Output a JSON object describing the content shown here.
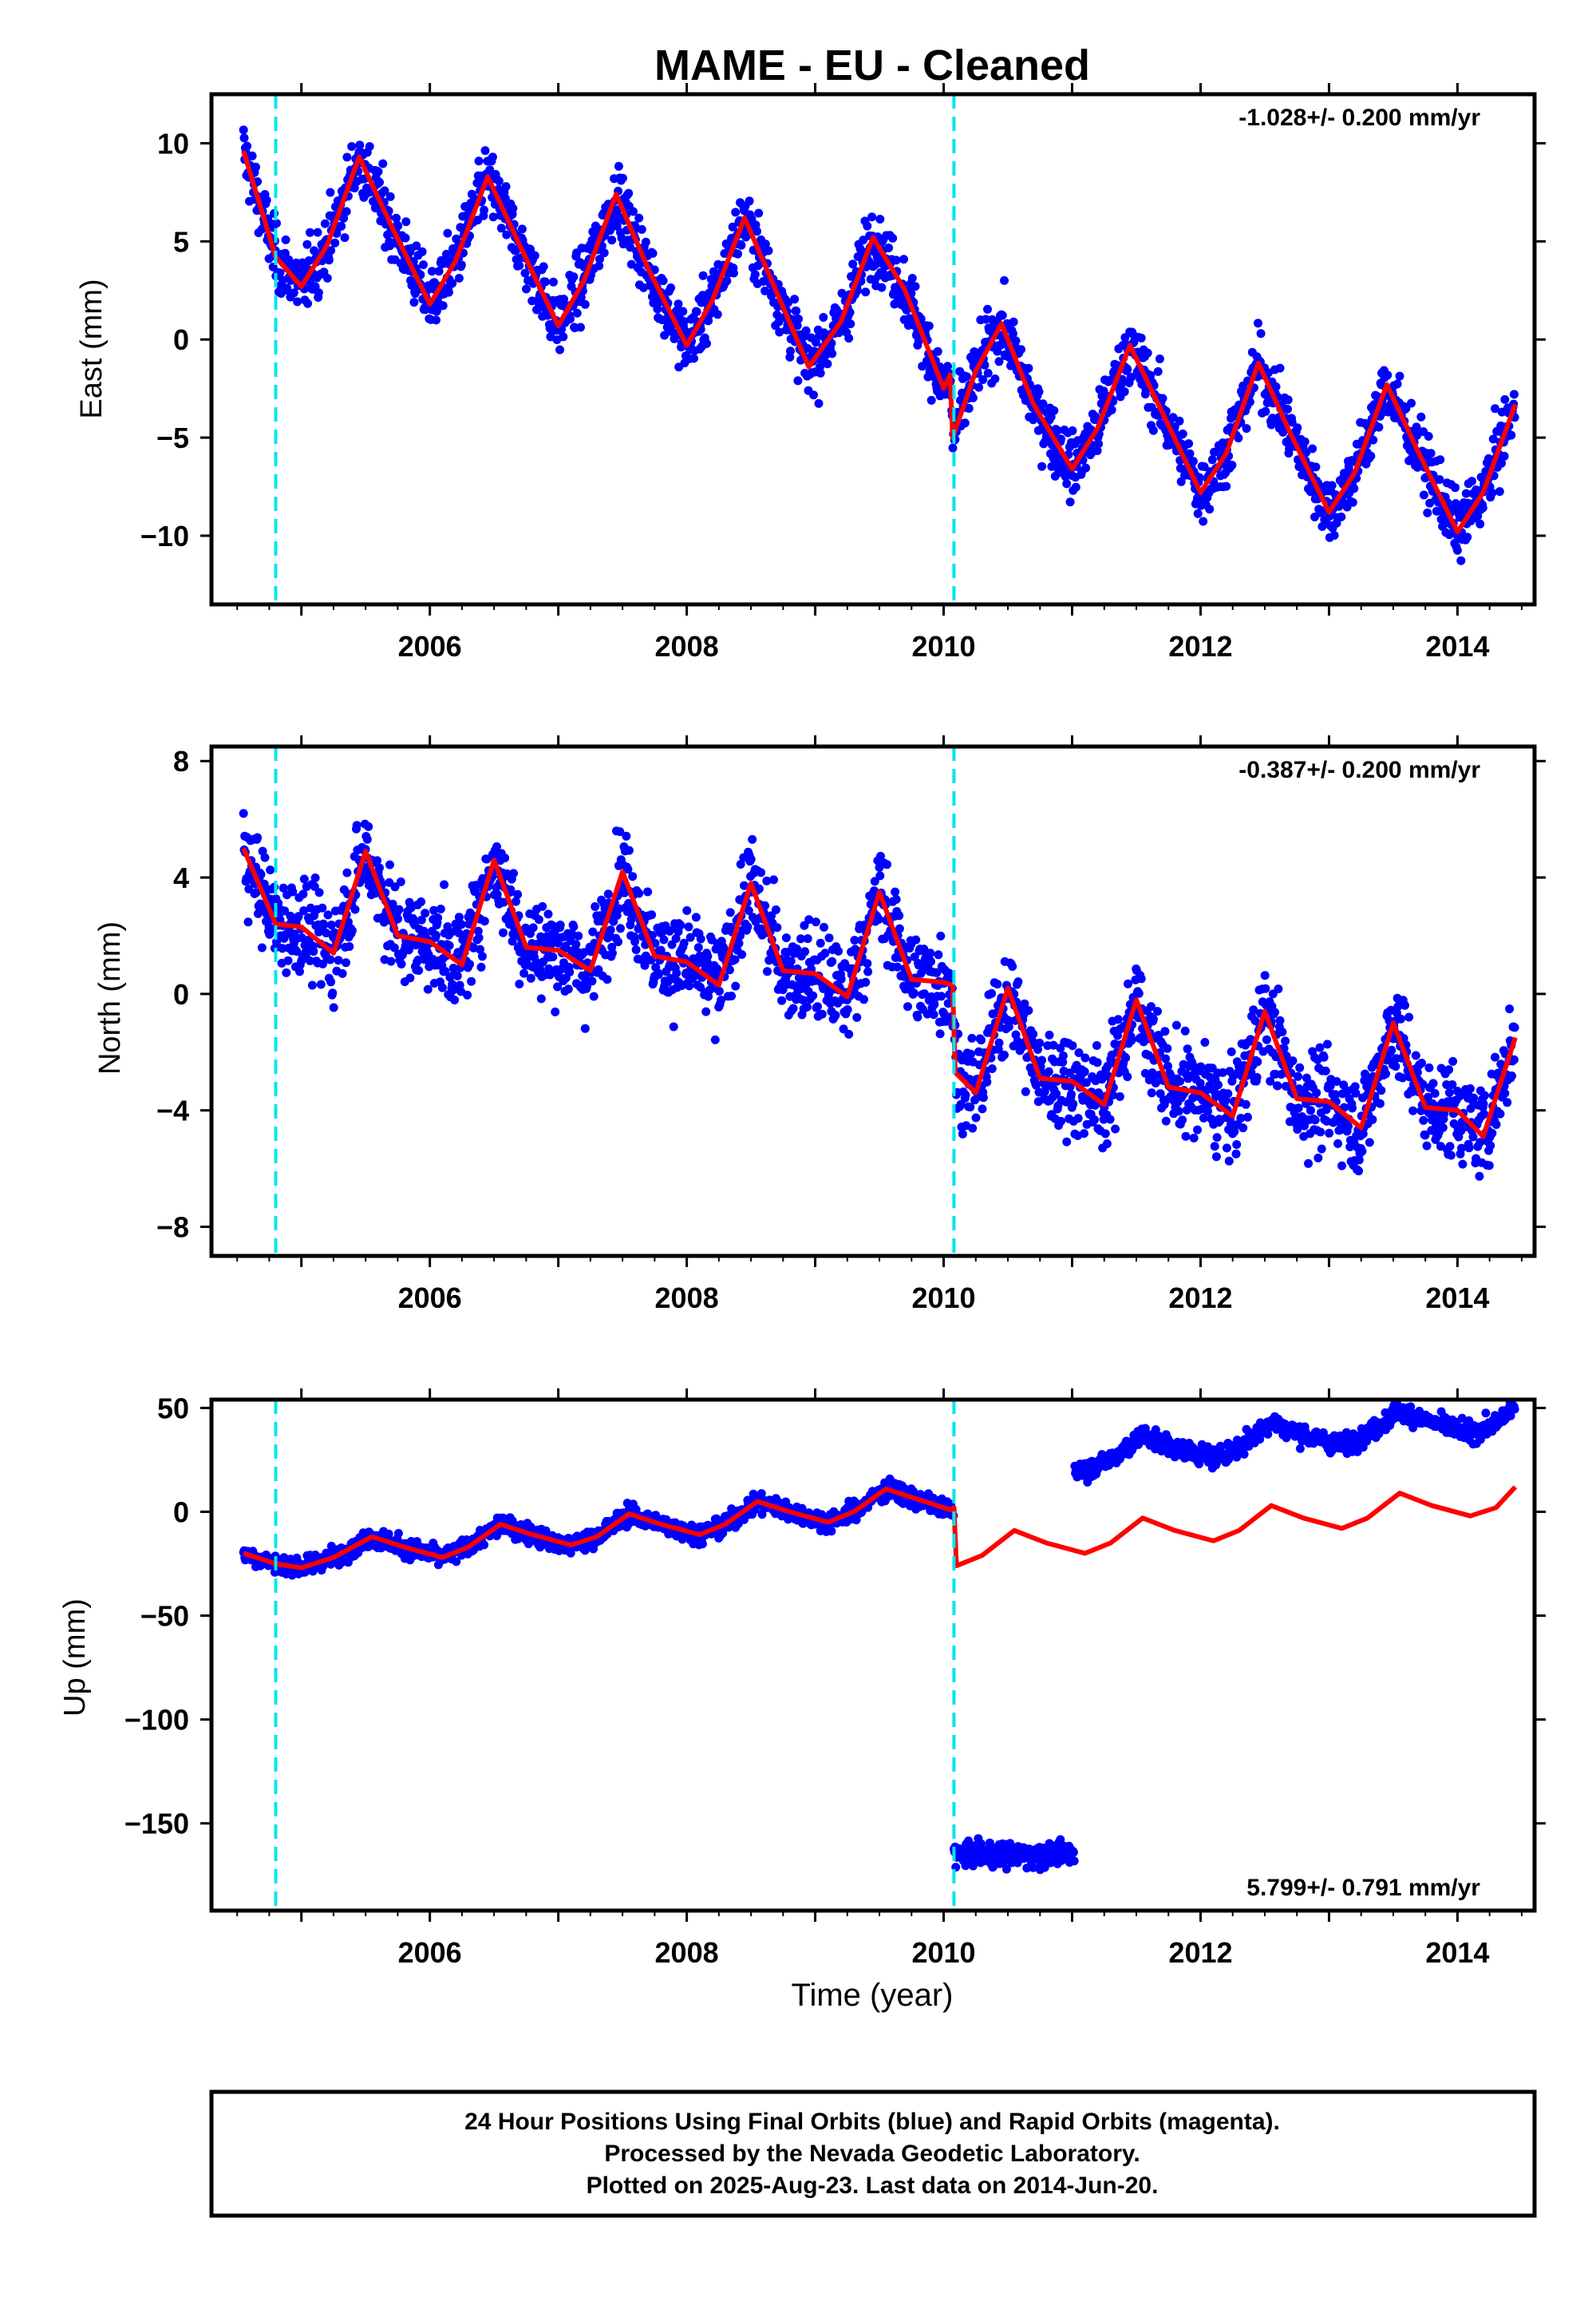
{
  "title": "MAME  - EU - Cleaned",
  "xlabel": "Time (year)",
  "colors": {
    "points": "#0000ff",
    "model": "#ff0000",
    "breaks": "#00e5ee",
    "frame": "#000000"
  },
  "footer": {
    "line1": "24 Hour Positions Using Final Orbits (blue) and Rapid Orbits (magenta).",
    "line2": "Processed by the Nevada Geodetic Laboratory.",
    "line3": "Plotted on 2025-Aug-23. Last data on 2014-Jun-20."
  },
  "chart_data": [
    {
      "type": "scatter",
      "ylabel": "East (mm)",
      "rate": "-1.028+/- 0.200 mm/yr",
      "xlim": [
        2004.3,
        2014.6
      ],
      "ylim": [
        -13.5,
        12.5
      ],
      "xticks": [
        2006,
        2008,
        2010,
        2012,
        2014
      ],
      "yticks": [
        -10,
        -5,
        0,
        5,
        10
      ],
      "breaks": [
        2004.8,
        2010.08
      ],
      "series": [
        {
          "x": [
            2004.55,
            2004.8,
            2005.0,
            2005.2,
            2005.45,
            2005.7,
            2006.0,
            2006.2,
            2006.45,
            2006.7,
            2007.0,
            2007.2,
            2007.45,
            2007.7,
            2008.0,
            2008.2,
            2008.45,
            2008.7,
            2008.95,
            2009.2,
            2009.45,
            2009.7,
            2010.0,
            2010.05,
            2010.07,
            2010.25,
            2010.45,
            2010.7,
            2011.0,
            2011.2,
            2011.45,
            2011.7,
            2012.0,
            2012.2,
            2012.45,
            2012.7,
            2013.0,
            2013.2,
            2013.45,
            2013.7,
            2014.0,
            2014.2,
            2014.45
          ],
          "y": [
            9.6,
            4.2,
            2.7,
            4.8,
            9.3,
            5.8,
            1.8,
            4.0,
            8.3,
            4.8,
            0.7,
            3.0,
            7.4,
            3.6,
            -0.3,
            2.0,
            6.2,
            2.4,
            -1.4,
            0.9,
            5.2,
            2.5,
            -2.5,
            -1.8,
            -5.0,
            -1.6,
            0.8,
            -3.3,
            -6.6,
            -4.5,
            -0.3,
            -3.7,
            -7.8,
            -5.8,
            -1.2,
            -4.8,
            -8.8,
            -6.8,
            -2.3,
            -5.8,
            -9.8,
            -7.8,
            -3.3
          ]
        }
      ]
    },
    {
      "type": "scatter",
      "ylabel": "North (mm)",
      "rate": "-0.387+/- 0.200 mm/yr",
      "xlim": [
        2004.3,
        2014.6
      ],
      "ylim": [
        -9,
        8.5
      ],
      "xticks": [
        2006,
        2008,
        2010,
        2012,
        2014
      ],
      "yticks": [
        -8,
        -4,
        0,
        4,
        8
      ],
      "breaks": [
        2004.8,
        2010.08
      ],
      "series": [
        {
          "x": [
            2004.55,
            2004.8,
            2005.0,
            2005.25,
            2005.5,
            2005.75,
            2006.0,
            2006.25,
            2006.5,
            2006.75,
            2007.0,
            2007.25,
            2007.5,
            2007.75,
            2008.0,
            2008.25,
            2008.5,
            2008.75,
            2009.0,
            2009.25,
            2009.5,
            2009.75,
            2010.0,
            2010.07,
            2010.09,
            2010.25,
            2010.5,
            2010.75,
            2011.0,
            2011.25,
            2011.5,
            2011.75,
            2012.0,
            2012.25,
            2012.5,
            2012.75,
            2013.0,
            2013.25,
            2013.5,
            2013.75,
            2014.0,
            2014.2,
            2014.45
          ],
          "y": [
            5.0,
            2.4,
            2.3,
            1.4,
            4.9,
            2.0,
            1.8,
            1.0,
            4.6,
            1.6,
            1.5,
            0.8,
            4.2,
            1.3,
            1.1,
            0.3,
            3.8,
            0.8,
            0.7,
            -0.1,
            3.5,
            0.5,
            0.4,
            0.3,
            -2.7,
            -3.4,
            0.2,
            -2.9,
            -3.0,
            -3.8,
            -0.2,
            -3.2,
            -3.4,
            -4.2,
            -0.6,
            -3.6,
            -3.7,
            -4.6,
            -1.0,
            -3.9,
            -4.0,
            -4.9,
            -1.5
          ]
        }
      ]
    },
    {
      "type": "scatter",
      "ylabel": "Up (mm)",
      "rate": "5.799+/- 0.791 mm/yr",
      "xlim": [
        2004.3,
        2014.6
      ],
      "ylim": [
        -192,
        54
      ],
      "xticks": [
        2006,
        2008,
        2010,
        2012,
        2014
      ],
      "yticks": [
        -150,
        -100,
        -50,
        0,
        50
      ],
      "breaks": [
        2004.8,
        2010.08
      ],
      "series": [
        {
          "x": [
            2004.55,
            2004.8,
            2005.0,
            2005.25,
            2005.55,
            2005.8,
            2006.1,
            2006.3,
            2006.55,
            2006.8,
            2007.1,
            2007.3,
            2007.55,
            2007.8,
            2008.1,
            2008.3,
            2008.55,
            2008.8,
            2009.1,
            2009.3,
            2009.55,
            2009.8,
            2010.05,
            2010.08,
            2010.1,
            2010.3,
            2010.55,
            2010.8,
            2011.1,
            2011.3,
            2011.55,
            2011.8,
            2012.1,
            2012.3,
            2012.55,
            2012.8,
            2013.1,
            2013.3,
            2013.55,
            2013.8,
            2014.1,
            2014.3,
            2014.45
          ],
          "y": [
            -20,
            -25,
            -27,
            -22,
            -12,
            -17,
            -22,
            -17,
            -6,
            -11,
            -16,
            -12,
            -1,
            -6,
            -11,
            -6,
            5,
            0,
            -5,
            0,
            11,
            6,
            1,
            2,
            -26,
            -21,
            -9,
            -15,
            -20,
            -15,
            -3,
            -9,
            -14,
            -9,
            3,
            -3,
            -8,
            -3,
            9,
            3,
            -2,
            2,
            12
          ]
        }
      ]
    }
  ]
}
